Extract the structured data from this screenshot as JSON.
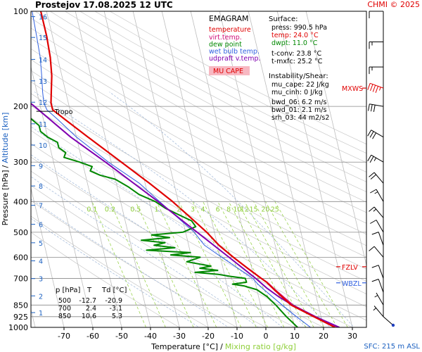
{
  "header": {
    "station": "Prostejov",
    "datetime": "17.08.2025 12 UTC",
    "copyright": "CHMI © 2025"
  },
  "chart_data": {
    "type": "line",
    "subtype": "skew-T log-p emagram",
    "xlabel": "Temperature [°C]",
    "xlabel_sep": "/",
    "xlabel2": "Mixing ratio [g/kg]",
    "ylabel": "Pressure [hPa]",
    "ylabel_sep": "/",
    "ylabel2": "Altitude [km]",
    "xlim": [
      -80,
      30
    ],
    "ylim": [
      1000,
      100
    ],
    "x_ticks": [
      -70,
      -60,
      -50,
      -40,
      -30,
      -20,
      -10,
      0,
      10,
      20,
      30
    ],
    "p_ticks": [
      {
        "p": 100,
        "label": "100"
      },
      {
        "p": 200,
        "label": "200"
      },
      {
        "p": 300,
        "label": "300"
      },
      {
        "p": 400,
        "label": "400"
      },
      {
        "p": 500,
        "label": "500"
      },
      {
        "p": 600,
        "label": "600"
      },
      {
        "p": 700,
        "label": "700"
      },
      {
        "p": 850,
        "label": "850"
      },
      {
        "p": 925,
        "label": "925"
      },
      {
        "p": 1000,
        "label": "1000"
      }
    ],
    "km_ticks": [
      {
        "km": 1,
        "p": 898
      },
      {
        "km": 2,
        "p": 795
      },
      {
        "km": 3,
        "p": 701
      },
      {
        "km": 4,
        "p": 616
      },
      {
        "km": 5,
        "p": 540
      },
      {
        "km": 6,
        "p": 472
      },
      {
        "km": 7,
        "p": 411
      },
      {
        "km": 8,
        "p": 357
      },
      {
        "km": 9,
        "p": 308
      },
      {
        "km": 10,
        "p": 265
      },
      {
        "km": 11,
        "p": 227
      },
      {
        "km": 12,
        "p": 194
      },
      {
        "km": 13,
        "p": 166
      },
      {
        "km": 14,
        "p": 142
      },
      {
        "km": 15,
        "p": 121
      },
      {
        "km": 16,
        "p": 104
      }
    ],
    "mixing_ratio_labels": [
      "0.1",
      "0.2",
      "0.5",
      "1",
      "2",
      "3",
      "4",
      "6",
      "8",
      "10",
      "12",
      "15",
      "20",
      "25"
    ],
    "series": [
      {
        "name": "temperature",
        "color": "#e00000",
        "points": [
          [
            1000,
            24
          ],
          [
            925,
            17.5
          ],
          [
            850,
            10.6
          ],
          [
            760,
            6
          ],
          [
            730,
            4.5
          ],
          [
            720,
            4
          ],
          [
            700,
            2.4
          ],
          [
            650,
            -1.5
          ],
          [
            600,
            -5.5
          ],
          [
            550,
            -9.5
          ],
          [
            500,
            -12.7
          ],
          [
            450,
            -17
          ],
          [
            400,
            -22
          ],
          [
            350,
            -28.5
          ],
          [
            300,
            -36.5
          ],
          [
            250,
            -46
          ],
          [
            220,
            -52.5
          ],
          [
            205,
            -56
          ],
          [
            195,
            -56
          ],
          [
            180,
            -55
          ],
          [
            160,
            -53.5
          ],
          [
            140,
            -52.5
          ],
          [
            120,
            -52
          ],
          [
            100,
            -52
          ]
        ]
      },
      {
        "name": "virt.temp.",
        "color": "#d0107a",
        "points": [
          [
            1000,
            25
          ],
          [
            925,
            18.2
          ],
          [
            850,
            11.3
          ],
          [
            760,
            6.4
          ],
          [
            730,
            4.8
          ],
          [
            720,
            4.2
          ],
          [
            700,
            2.6
          ],
          [
            650,
            -1.3
          ],
          [
            600,
            -5.4
          ],
          [
            550,
            -9.4
          ],
          [
            500,
            -12.6
          ],
          [
            450,
            -17
          ],
          [
            400,
            -22
          ],
          [
            350,
            -28.5
          ],
          [
            300,
            -36.5
          ],
          [
            250,
            -46
          ],
          [
            220,
            -52.5
          ],
          [
            205,
            -56
          ],
          [
            195,
            -56
          ],
          [
            180,
            -55
          ],
          [
            160,
            -53.5
          ],
          [
            140,
            -52.5
          ],
          [
            120,
            -52
          ],
          [
            100,
            -52
          ]
        ]
      },
      {
        "name": "dew point",
        "color": "#008800",
        "points": [
          [
            1000,
            11
          ],
          [
            925,
            8
          ],
          [
            850,
            5.3
          ],
          [
            800,
            3
          ],
          [
            760,
            0
          ],
          [
            740,
            -4
          ],
          [
            730,
            -8
          ],
          [
            720,
            -3
          ],
          [
            700,
            -3.1
          ],
          [
            690,
            -8
          ],
          [
            680,
            -12
          ],
          [
            670,
            -20
          ],
          [
            660,
            -12
          ],
          [
            650,
            -18
          ],
          [
            640,
            -14
          ],
          [
            620,
            -22
          ],
          [
            600,
            -17
          ],
          [
            590,
            -27
          ],
          [
            580,
            -20
          ],
          [
            570,
            -35
          ],
          [
            560,
            -25
          ],
          [
            550,
            -32
          ],
          [
            540,
            -28
          ],
          [
            530,
            -36
          ],
          [
            520,
            -26
          ],
          [
            510,
            -32
          ],
          [
            500,
            -20.9
          ],
          [
            480,
            -16
          ],
          [
            460,
            -17
          ],
          [
            440,
            -21
          ],
          [
            420,
            -25
          ],
          [
            400,
            -28
          ],
          [
            380,
            -33
          ],
          [
            360,
            -36
          ],
          [
            340,
            -40
          ],
          [
            330,
            -45
          ],
          [
            320,
            -48
          ],
          [
            310,
            -47
          ],
          [
            300,
            -51
          ],
          [
            290,
            -56
          ],
          [
            280,
            -55
          ],
          [
            270,
            -57
          ],
          [
            260,
            -57
          ],
          [
            250,
            -60
          ],
          [
            240,
            -62
          ],
          [
            230,
            -62
          ],
          [
            220,
            -64
          ],
          [
            210,
            -66
          ],
          [
            200,
            -68
          ],
          [
            190,
            -70
          ],
          [
            170,
            -72
          ],
          [
            150,
            -73
          ]
        ]
      },
      {
        "name": "wet bulb temp.",
        "color": "#3060e0",
        "points": [
          [
            1000,
            15.5
          ],
          [
            925,
            11.5
          ],
          [
            850,
            7.5
          ],
          [
            760,
            2.5
          ],
          [
            730,
            0.8
          ],
          [
            700,
            -0.5
          ],
          [
            650,
            -4.8
          ],
          [
            600,
            -9.5
          ],
          [
            550,
            -14.5
          ],
          [
            500,
            -17
          ],
          [
            450,
            -21.5
          ],
          [
            400,
            -26.5
          ],
          [
            350,
            -32
          ],
          [
            300,
            -41
          ],
          [
            250,
            -50
          ],
          [
            220,
            -55
          ],
          [
            205,
            -58
          ],
          [
            195,
            -58.5
          ],
          [
            180,
            -58
          ],
          [
            160,
            -57
          ],
          [
            140,
            -56
          ],
          [
            120,
            -55.5
          ],
          [
            100,
            -55
          ]
        ]
      },
      {
        "name": "udpraft v.temp.",
        "color": "#8000b0",
        "points": [
          [
            1000,
            25.5
          ],
          [
            925,
            18
          ],
          [
            850,
            11
          ],
          [
            800,
            7
          ],
          [
            750,
            3.5
          ],
          [
            700,
            0.5
          ],
          [
            600,
            -7
          ],
          [
            500,
            -16
          ],
          [
            400,
            -27
          ],
          [
            300,
            -42
          ],
          [
            250,
            -52
          ],
          [
            200,
            -62
          ],
          [
            180,
            -67
          ],
          [
            160,
            -72
          ],
          [
            150,
            -75
          ]
        ]
      }
    ],
    "legend": {
      "title": "EMAGRAM",
      "items": [
        {
          "label": "temperature",
          "color": "#e00000"
        },
        {
          "label": "virt.temp.",
          "color": "#d0107a"
        },
        {
          "label": "dew point",
          "color": "#008800"
        },
        {
          "label": "wet bulb temp.",
          "color": "#3060e0"
        },
        {
          "label": "udpraft v.temp.",
          "color": "#8000b0"
        }
      ],
      "badge": "MU CAPE"
    },
    "annotations": [
      {
        "id": "tropo",
        "text": "Tropo",
        "p": 200
      },
      {
        "id": "mxws",
        "text": "MXWS",
        "p": 175,
        "color": "#e00000"
      },
      {
        "id": "fzlv",
        "text": "FZLV",
        "p": 643,
        "color": "#e00000"
      },
      {
        "id": "wbzl",
        "text": "WBZL",
        "p": 723,
        "color": "#3060e0"
      }
    ],
    "wind_barbs": [
      {
        "p": 100,
        "ddd": 270,
        "kt": 10
      },
      {
        "p": 125,
        "ddd": 270,
        "kt": 15
      },
      {
        "p": 150,
        "ddd": 270,
        "kt": 15
      },
      {
        "p": 175,
        "ddd": 290,
        "kt": 45,
        "highlight": true
      },
      {
        "p": 200,
        "ddd": 280,
        "kt": 30
      },
      {
        "p": 250,
        "ddd": 300,
        "kt": 30
      },
      {
        "p": 300,
        "ddd": 300,
        "kt": 25
      },
      {
        "p": 350,
        "ddd": 320,
        "kt": 20
      },
      {
        "p": 400,
        "ddd": 330,
        "kt": 15
      },
      {
        "p": 450,
        "ddd": 320,
        "kt": 15
      },
      {
        "p": 500,
        "ddd": 330,
        "kt": 10
      },
      {
        "p": 550,
        "ddd": 340,
        "kt": 10
      },
      {
        "p": 600,
        "ddd": 320,
        "kt": 10
      },
      {
        "p": 700,
        "ddd": 340,
        "kt": 10
      },
      {
        "p": 775,
        "ddd": 340,
        "kt": 10
      },
      {
        "p": 850,
        "ddd": 330,
        "kt": 5
      },
      {
        "p": 925,
        "ddd": 320,
        "kt": 5
      }
    ]
  },
  "info": {
    "surface": {
      "title": "Surface:",
      "lines": [
        {
          "text": "press: 990.5 hPa",
          "color": "#000000"
        },
        {
          "text": "temp: 24.0 °C",
          "color": "#e00000"
        },
        {
          "text": "dwpt: 11.0 °C",
          "color": "#008800"
        }
      ]
    },
    "conv": [
      {
        "text": "t-conv: 23.8 °C"
      },
      {
        "text": "t-mxfc: 25.2 °C"
      }
    ],
    "shear": {
      "title": "Instability/Shear:",
      "lines": [
        {
          "text": "mu_cape: 22 J/kg"
        },
        {
          "text": "mu_cinh: 0 J/kg"
        },
        {
          "text": "bwd_06: 6.2 m/s"
        },
        {
          "text": "bwd_01: 2.1 m/s"
        },
        {
          "text": "srh_03: 44 m2/s2"
        }
      ]
    }
  },
  "table": {
    "headers": [
      "p [hPa]",
      "T",
      "Td [°C]"
    ],
    "rows": [
      [
        "500",
        "-12.7",
        "-20.9"
      ],
      [
        "700",
        "2.4",
        "-3.1"
      ],
      [
        "850",
        "10.6",
        "5.3"
      ]
    ]
  },
  "footer": {
    "sfc": "SFC: 215 m ASL"
  },
  "colors": {
    "axis_label_blue": "#1a5fc0",
    "mixing_ratio_green": "#8fcf3a",
    "isotherm": "#bdbdbd",
    "dry_adiabat": "#c8c8c8",
    "moist_adiabat": "#9fb7d8"
  }
}
